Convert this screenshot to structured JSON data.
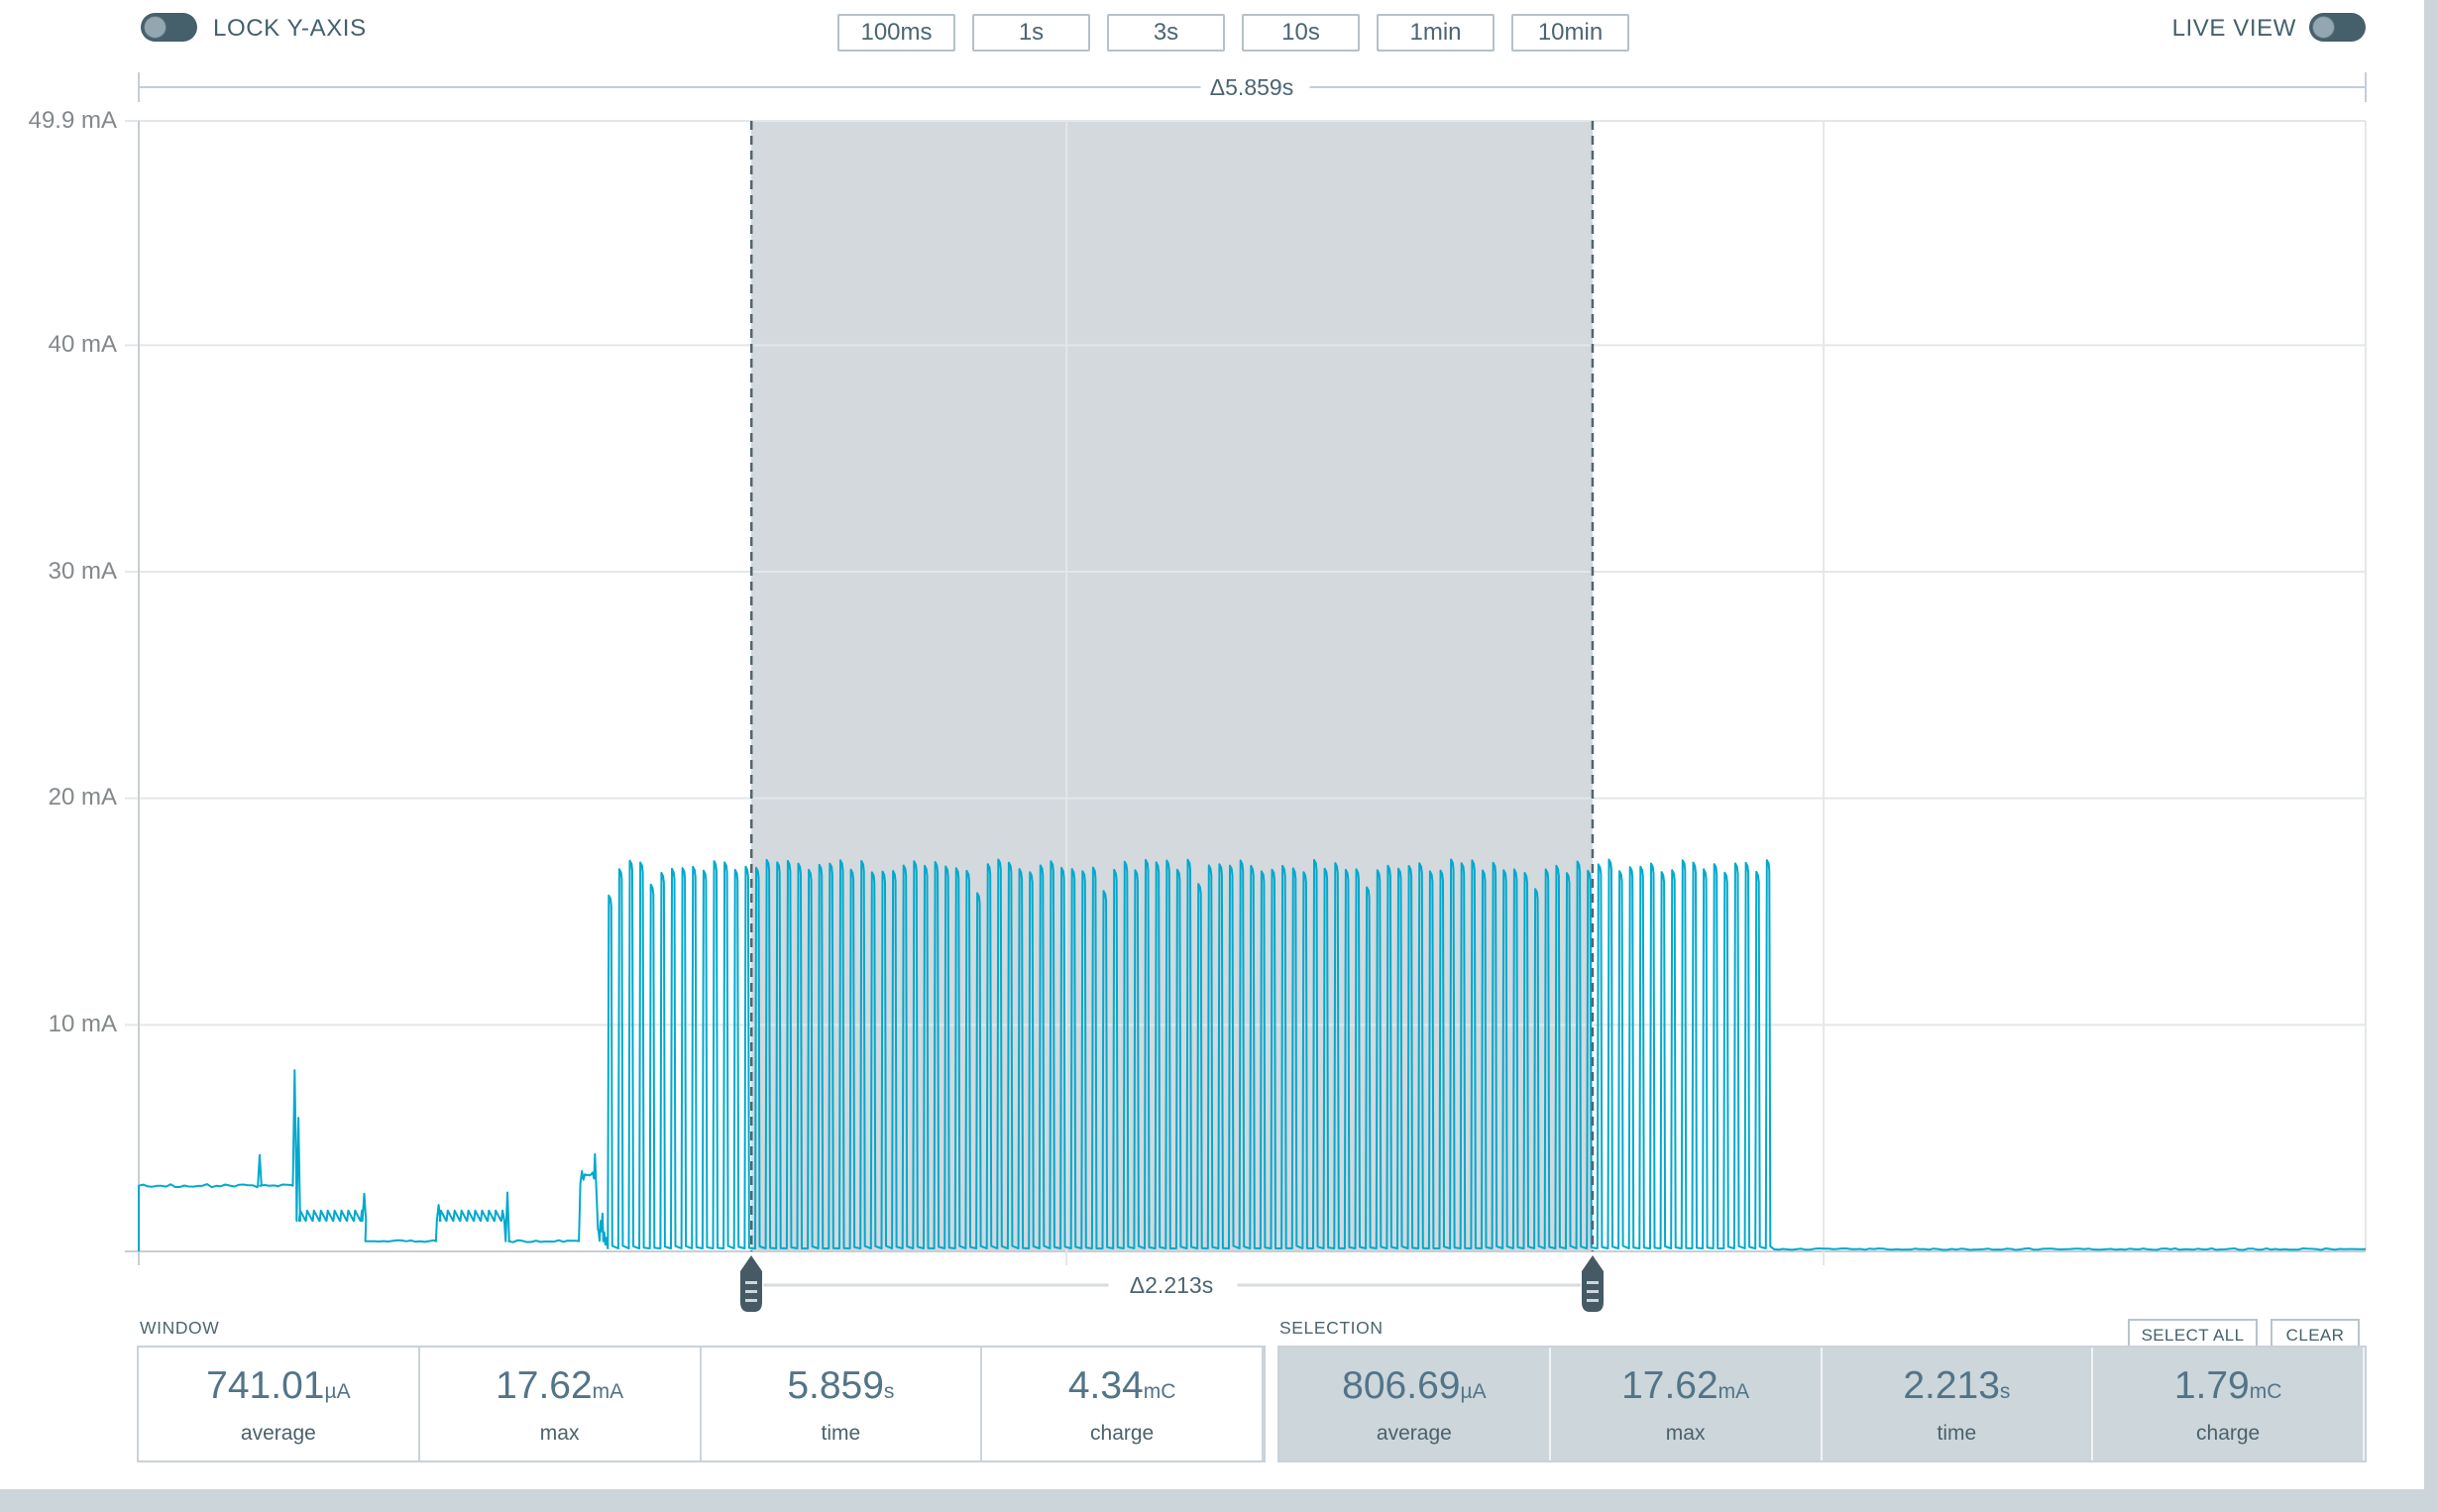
{
  "header": {
    "lock_y_axis_label": "LOCK Y-AXIS",
    "live_view_label": "LIVE VIEW",
    "duration_buttons": [
      "100ms",
      "1s",
      "3s",
      "10s",
      "1min",
      "10min"
    ]
  },
  "chart_data": {
    "type": "line",
    "title": "",
    "x_unit": "s",
    "y_unit": "mA",
    "window_duration_s": 5.859,
    "window_label": "Δ5.859s",
    "ylim": [
      0,
      49.9
    ],
    "y_ticks_mA": [
      49.9,
      40,
      30,
      20,
      10
    ],
    "y_tick_labels": [
      "49.9 mA",
      "40 mA",
      "30 mA",
      "20 mA",
      "10 mA"
    ],
    "x_gridlines_s": [
      2.441,
      4.433
    ],
    "grid": true,
    "legend": false,
    "trace_color": "#00a9ce",
    "selection": {
      "t0_s": 1.612,
      "t1_s": 3.825,
      "duration_s": 2.213,
      "label": "Δ2.213s"
    },
    "segments": [
      {
        "type": "flat",
        "t0": 0.0,
        "t1": 0.313,
        "level": 2.9,
        "noise": 0.07
      },
      {
        "type": "spike",
        "t": 0.316,
        "peak": 4.25,
        "base": 2.9
      },
      {
        "type": "flat",
        "t0": 0.319,
        "t1": 0.404,
        "level": 2.9,
        "noise": 0.07
      },
      {
        "type": "spike",
        "t": 0.408,
        "peak": 8.0,
        "base": 2.9
      },
      {
        "type": "spike",
        "t": 0.418,
        "peak": 5.9,
        "base": 1.35
      },
      {
        "type": "saw",
        "t0": 0.422,
        "t1": 0.585,
        "level": 1.35,
        "tip": 1.8,
        "period": 0.018
      },
      {
        "type": "spike",
        "t": 0.591,
        "peak": 2.55,
        "base": 1.35
      },
      {
        "type": "flat",
        "t0": 0.596,
        "t1": 0.782,
        "level": 0.45,
        "noise": 0.05
      },
      {
        "type": "spike",
        "t": 0.787,
        "peak": 2.05,
        "base": 1.35
      },
      {
        "type": "saw",
        "t0": 0.792,
        "t1": 0.962,
        "level": 1.35,
        "tip": 1.8,
        "period": 0.018
      },
      {
        "type": "spike",
        "t": 0.968,
        "peak": 2.6,
        "base": 0.45
      },
      {
        "type": "flat",
        "t0": 0.973,
        "t1": 1.158,
        "level": 0.45,
        "noise": 0.05
      },
      {
        "type": "burst",
        "t0": 1.162,
        "t1": 1.208,
        "level": 3.0,
        "tip": 4.3
      },
      {
        "type": "chaos",
        "t0": 1.21,
        "t1": 1.232,
        "min": 0.3,
        "max": 1.7
      },
      {
        "type": "train",
        "t0": 1.234,
        "t1": 4.3,
        "base": 0.13,
        "peak": 17.3,
        "period": 0.0277,
        "duty": 0.33
      },
      {
        "type": "flat",
        "t0": 4.302,
        "t1": 5.859,
        "level": 0.1,
        "noise": 0.035
      }
    ]
  },
  "window_panel": {
    "title": "WINDOW",
    "stats": [
      {
        "value": "741.01",
        "unit": "µA",
        "label": "average"
      },
      {
        "value": "17.62",
        "unit": "mA",
        "label": "max"
      },
      {
        "value": "5.859",
        "unit": "s",
        "label": "time"
      },
      {
        "value": "4.34",
        "unit": "mC",
        "label": "charge"
      }
    ]
  },
  "selection_panel": {
    "title": "SELECTION",
    "select_all_label": "SELECT ALL",
    "clear_label": "CLEAR",
    "stats": [
      {
        "value": "806.69",
        "unit": "µA",
        "label": "average"
      },
      {
        "value": "17.62",
        "unit": "mA",
        "label": "max"
      },
      {
        "value": "2.213",
        "unit": "s",
        "label": "time"
      },
      {
        "value": "1.79",
        "unit": "mC",
        "label": "charge"
      }
    ]
  },
  "colors": {
    "accent_teal": "#00a9ce",
    "slate_dark": "#46606b",
    "text_slate": "#4b6572",
    "grid_line": "#e4e7e9",
    "axis_line": "#c7ced3",
    "bracket_line": "#c5ced6",
    "selection_connector": "#d7dde0",
    "selection_fill": "rgba(167,180,188,0.5)",
    "handle_fill": "#455a64",
    "panel_cell_gray": "#ccd6db"
  }
}
